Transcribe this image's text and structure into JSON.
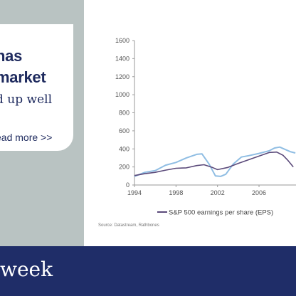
{
  "promo": {
    "headline_line1": "has",
    "headline_line2": "market",
    "subline": "d up well",
    "read_more": "ead more >>"
  },
  "banner": {
    "text": "week"
  },
  "colors": {
    "navy": "#1f2d68",
    "sidebar": "#b9c3c2",
    "eps_line": "#5b4a7a",
    "price_line": "#8fbde3",
    "axis_text": "#555555"
  },
  "chart_data": {
    "type": "line",
    "x_ticks": [
      "1994",
      "1998",
      "2002",
      "2006"
    ],
    "y_ticks": [
      "0",
      "200",
      "400",
      "600",
      "800",
      "1000",
      "1200",
      "1400",
      "1600"
    ],
    "ylim": [
      0,
      1600
    ],
    "xlim": [
      1994,
      2009.7
    ],
    "grid": false,
    "legend": "bottom",
    "source": "Source: Datastream, Rathbones",
    "series": [
      {
        "name": "S&P 500 earnings per share (EPS)",
        "color": "#5b4a7a",
        "x": [
          1994,
          1995,
          1996,
          1997,
          1998,
          1999,
          2000,
          2000.7,
          2001.5,
          2002,
          2003,
          2004,
          2005,
          2006,
          2007,
          2007.7,
          2008.3,
          2008.8,
          2009.3
        ],
        "values": [
          105,
          125,
          140,
          165,
          185,
          190,
          215,
          225,
          195,
          170,
          195,
          240,
          280,
          320,
          360,
          365,
          330,
          270,
          200
        ]
      },
      {
        "name": "",
        "color": "#8fbde3",
        "x": [
          1994,
          1995,
          1996,
          1997,
          1998,
          1999,
          2000,
          2000.5,
          2001.2,
          2001.8,
          2002.3,
          2002.8,
          2003.5,
          2004.3,
          2005,
          2006,
          2007,
          2007.5,
          2008,
          2008.5,
          2009,
          2009.5
        ],
        "values": [
          95,
          140,
          160,
          220,
          250,
          300,
          340,
          345,
          230,
          100,
          95,
          120,
          230,
          310,
          325,
          350,
          380,
          410,
          420,
          395,
          370,
          355
        ]
      }
    ]
  }
}
